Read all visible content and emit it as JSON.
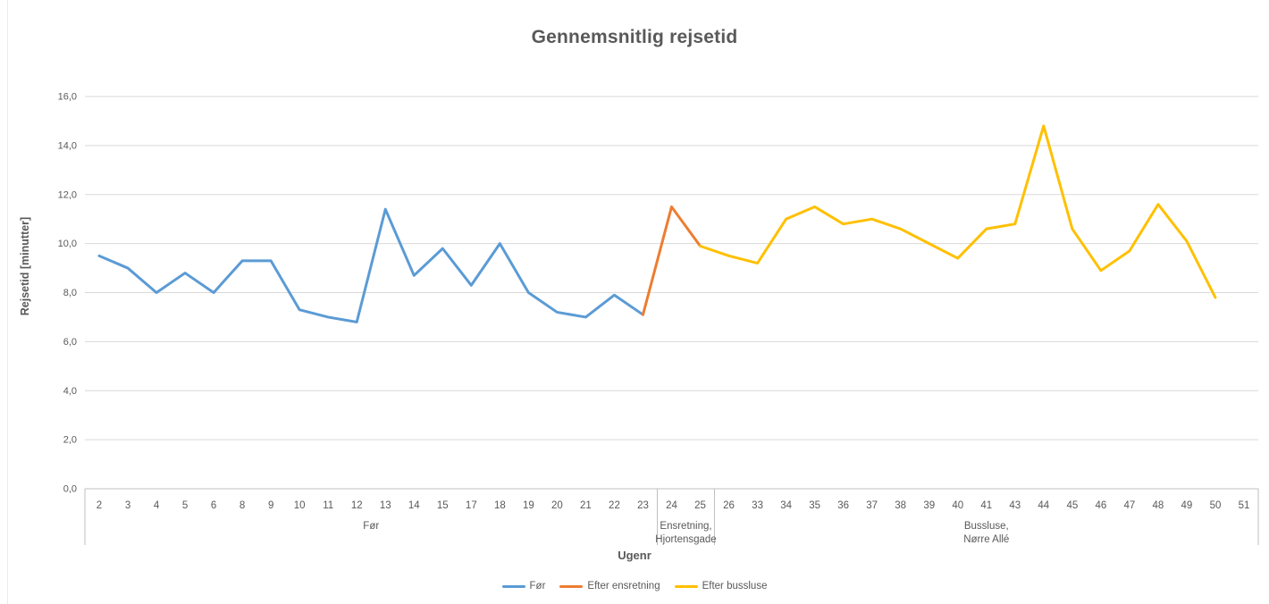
{
  "chart_data": {
    "type": "line",
    "title": "Gennemsnitlig rejsetid",
    "xlabel": "Ugenr",
    "ylabel": "Rejsetid [minutter]",
    "ylim": [
      0,
      16
    ],
    "ytick_labels": [
      "0,0",
      "2,0",
      "4,0",
      "6,0",
      "8,0",
      "10,0",
      "12,0",
      "14,0",
      "16,0"
    ],
    "grid": true,
    "legend_position": "bottom",
    "categories": [
      "2",
      "3",
      "4",
      "5",
      "6",
      "8",
      "9",
      "10",
      "11",
      "12",
      "13",
      "14",
      "15",
      "17",
      "18",
      "19",
      "20",
      "21",
      "22",
      "23",
      "24",
      "25",
      "26",
      "33",
      "34",
      "35",
      "36",
      "37",
      "38",
      "39",
      "40",
      "41",
      "43",
      "44",
      "45",
      "46",
      "47",
      "48",
      "49",
      "50",
      "51"
    ],
    "groups": [
      {
        "label": "Før",
        "label_lines": [
          "Før"
        ],
        "start_index": 0,
        "end_index": 19
      },
      {
        "label": "Ensretning, Hjortensgade",
        "label_lines": [
          "Ensretning,",
          "Hjortensgade"
        ],
        "start_index": 20,
        "end_index": 21
      },
      {
        "label": "Bussluse, Nørre Allé",
        "label_lines": [
          "Bussluse,",
          "Nørre Allé"
        ],
        "start_index": 22,
        "end_index": 40
      }
    ],
    "series": [
      {
        "name": "Før",
        "color": "#5B9BD5",
        "start_index": 0,
        "values": [
          9.5,
          9.0,
          8.0,
          8.8,
          8.0,
          9.3,
          9.3,
          7.3,
          7.0,
          6.8,
          11.4,
          8.7,
          9.8,
          8.3,
          10.0,
          8.0,
          7.2,
          7.0,
          7.9,
          7.1
        ]
      },
      {
        "name": "Efter ensretning",
        "color": "#ED7D31",
        "start_index": 19,
        "values": [
          7.1,
          11.5,
          9.9
        ]
      },
      {
        "name": "Efter bussluse",
        "color": "#FFC000",
        "start_index": 21,
        "values": [
          9.9,
          9.5,
          9.2,
          11.0,
          11.5,
          10.8,
          11.0,
          10.6,
          10.0,
          9.4,
          10.6,
          10.8,
          14.8,
          10.6,
          8.9,
          9.7,
          11.6,
          10.1,
          7.8
        ]
      }
    ],
    "style": {
      "gridline_color": "#D9D9D9",
      "axis_line_color": "#BFBFBF",
      "label_color": "#595959"
    }
  }
}
